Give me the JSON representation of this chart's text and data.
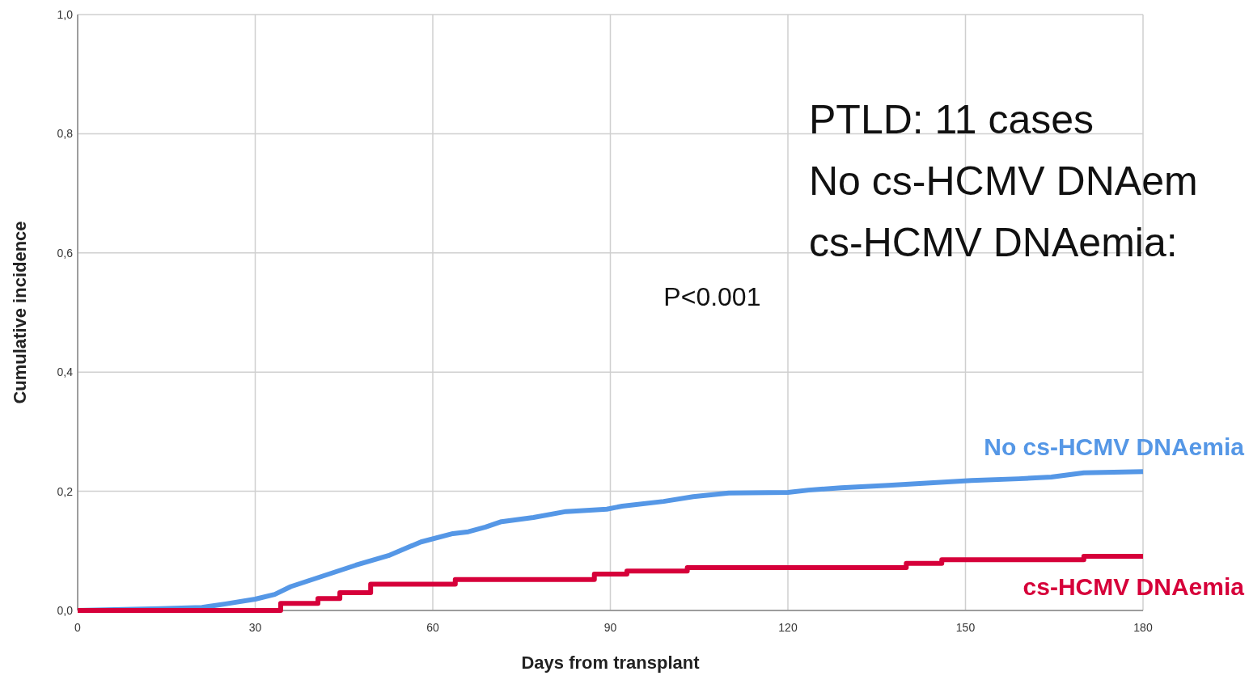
{
  "chart_data": {
    "type": "step",
    "xlabel": "Days from transplant",
    "ylabel": "Cumulative incidence",
    "xlim": [
      0,
      180
    ],
    "xticks": [
      0,
      30,
      60,
      90,
      120,
      150,
      180
    ],
    "ylim": [
      0,
      1
    ],
    "yticks": [
      {
        "value": 0,
        "label": "0,0"
      },
      {
        "value": 0.2,
        "label": "0,2"
      },
      {
        "value": 0.4,
        "label": "0,4"
      },
      {
        "value": 0.6,
        "label": "0,6"
      },
      {
        "value": 0.8,
        "label": "0,8"
      },
      {
        "value": 1,
        "label": "1,0"
      }
    ],
    "grid": true,
    "series": [
      {
        "name": "No cs-HCMV DNAemia",
        "type": "line",
        "color": "#5597e6",
        "x": [
          0,
          14,
          21,
          25,
          30,
          33.3,
          36,
          41.5,
          47,
          52.5,
          58,
          63.4,
          66,
          68.9,
          71.6,
          77,
          82.5,
          89.4,
          92,
          99,
          104,
          110,
          120,
          123.5,
          129,
          137,
          144,
          151,
          159,
          164.5,
          170,
          180
        ],
        "values": [
          0,
          0.003,
          0.005,
          0.011,
          0.019,
          0.027,
          0.04,
          0.058,
          0.076,
          0.092,
          0.115,
          0.129,
          0.132,
          0.14,
          0.149,
          0.156,
          0.166,
          0.17,
          0.175,
          0.183,
          0.191,
          0.197,
          0.198,
          0.202,
          0.206,
          0.21,
          0.214,
          0.218,
          0.221,
          0.224,
          0.231,
          0.233
        ]
      },
      {
        "name": "cs-HCMV DNAemia",
        "color": "#d6003a",
        "x": [
          0,
          34.3,
          40.6,
          44.3,
          49.5,
          63.8,
          87.3,
          92.8,
          103,
          140,
          146,
          170,
          180
        ],
        "values": [
          0,
          0.012,
          0.02,
          0.03,
          0.044,
          0.052,
          0.061,
          0.066,
          0.072,
          0.079,
          0.085,
          0.091,
          0.091
        ]
      }
    ],
    "annotations": [
      "PTLD: 11 cases",
      "No cs-HCMV DNAem",
      "cs-HCMV DNAemia:",
      "P<0.001"
    ]
  }
}
